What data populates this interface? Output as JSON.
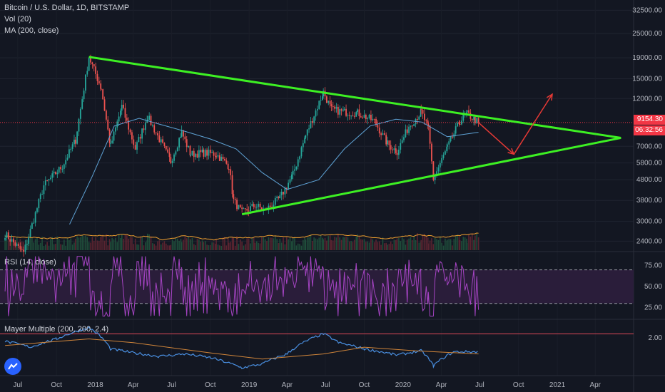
{
  "header": {
    "title": "Bitcoin / U.S. Dollar, 1D, BITSTAMP",
    "vol": "Vol (20)",
    "ma": "MA (200, close)"
  },
  "price_tags": {
    "last": "9154.30",
    "countdown": "06:32:56"
  },
  "colors": {
    "trendline": "#3df023",
    "projection": "#e53935",
    "ma": "#5fa3d6",
    "vol_ma": "#f0a030",
    "rsi": "#a644c4",
    "mayer": "#4a90e2",
    "mayer_ma": "#d0853a",
    "last_price": "#f23645",
    "bg": "#131722"
  },
  "chart_data": [
    {
      "type": "candlestick",
      "title": "Bitcoin / U.S. Dollar, 1D, BITSTAMP",
      "log_scale": true,
      "y_tick_labels": [
        "32500.00",
        "25000.00",
        "19000.00",
        "15000.00",
        "12000.00",
        "9154.30",
        "7000.00",
        "5800.00",
        "4800.00",
        "3800.00",
        "3000.00",
        "2400.00"
      ],
      "x_tick_labels": [
        "Jul",
        "Oct",
        "2018",
        "Apr",
        "Jul",
        "Oct",
        "2019",
        "Apr",
        "Jul",
        "Oct",
        "2020",
        "Apr",
        "Jul",
        "Oct",
        "2021",
        "Apr"
      ],
      "series": [
        {
          "name": "Bitcoin / U.S. Dollar",
          "x": [
            "2017-06-01",
            "2017-07-15",
            "2017-09-01",
            "2017-10-15",
            "2017-11-15",
            "2017-12-17",
            "2018-01-15",
            "2018-02-06",
            "2018-03-05",
            "2018-04-06",
            "2018-05-05",
            "2018-06-29",
            "2018-07-25",
            "2018-08-15",
            "2018-09-15",
            "2018-10-15",
            "2018-11-14",
            "2018-11-25",
            "2018-12-15",
            "2019-01-15",
            "2019-02-08",
            "2019-03-15",
            "2019-04-15",
            "2019-05-15",
            "2019-06-26",
            "2019-07-15",
            "2019-08-15",
            "2019-09-15",
            "2019-10-25",
            "2019-11-25",
            "2019-12-18",
            "2020-01-15",
            "2020-02-13",
            "2020-03-01",
            "2020-03-13",
            "2020-04-15",
            "2020-05-15",
            "2020-06-01",
            "2020-06-20",
            "2020-06-28"
          ],
          "y": [
            2600,
            2100,
            4500,
            5600,
            7500,
            19200,
            13500,
            7000,
            11000,
            6800,
            9800,
            5900,
            8200,
            6400,
            6500,
            6400,
            5600,
            3800,
            3300,
            3600,
            3400,
            3900,
            5100,
            7900,
            12900,
            10600,
            10300,
            10200,
            9300,
            7200,
            6600,
            8800,
            10300,
            8600,
            4850,
            6900,
            9300,
            10100,
            9400,
            9154
          ]
        },
        {
          "name": "MA (200, close)",
          "x": [
            "2017-11-01",
            "2017-12-25",
            "2018-02-15",
            "2018-04-15",
            "2018-06-01",
            "2018-08-01",
            "2018-10-01",
            "2018-12-01",
            "2019-02-01",
            "2019-04-01",
            "2019-06-15",
            "2019-08-15",
            "2019-10-15",
            "2019-12-15",
            "2020-02-15",
            "2020-04-15",
            "2020-06-28"
          ],
          "y": [
            2900,
            5000,
            8800,
            9600,
            9000,
            8300,
            7600,
            6800,
            5200,
            4300,
            4800,
            6800,
            8800,
            9500,
            9200,
            7800,
            8200
          ]
        },
        {
          "name": "Vol (20)"
        }
      ],
      "trendlines": [
        {
          "x": [
            "2017-12-17",
            "2021-06-01"
          ],
          "y": [
            19200,
            7700
          ]
        },
        {
          "x": [
            "2018-12-15",
            "2021-06-01"
          ],
          "y": [
            3250,
            7700
          ]
        }
      ],
      "projection": {
        "x": [
          "2020-06-28",
          "2020-09-20",
          "2020-12-20"
        ],
        "y": [
          9154,
          6400,
          12600
        ]
      },
      "xlim": [
        "2017-05-20",
        "2021-07-01"
      ]
    },
    {
      "type": "line",
      "title": "RSI (14, close)",
      "y_tick_labels": [
        "75.00",
        "50.00",
        "25.00"
      ],
      "reference_lines": [
        70,
        30
      ],
      "ylim": [
        12,
        90
      ]
    },
    {
      "type": "line",
      "title": "Mayer Multiple (200, 200, 2.4)",
      "y_tick_labels": [
        "2.00"
      ],
      "threshold": 2.4,
      "series": [
        {
          "name": "Mayer Multiple",
          "x": [
            "2017-06-01",
            "2017-08-01",
            "2017-10-01",
            "2017-12-17",
            "2018-02-06",
            "2018-04-01",
            "2018-06-01",
            "2018-08-01",
            "2018-10-01",
            "2018-12-15",
            "2019-02-01",
            "2019-04-01",
            "2019-06-26",
            "2019-08-01",
            "2019-10-01",
            "2019-12-18",
            "2020-02-13",
            "2020-03-13",
            "2020-05-01",
            "2020-06-28"
          ],
          "y": [
            1.7,
            1.3,
            1.9,
            3.2,
            1.2,
            1.0,
            0.85,
            0.95,
            0.8,
            0.5,
            0.6,
            0.95,
            2.4,
            1.6,
            1.2,
            0.9,
            1.1,
            0.55,
            1.05,
            1.05
          ]
        },
        {
          "name": "Mayer Multiple MA",
          "x": [
            "2017-06-01",
            "2017-12-17",
            "2018-04-01",
            "2018-10-01",
            "2019-02-01",
            "2019-06-26",
            "2019-10-01",
            "2020-02-01",
            "2020-06-28"
          ],
          "y": [
            1.4,
            1.9,
            1.6,
            1.0,
            0.75,
            0.95,
            1.3,
            1.1,
            0.95
          ]
        }
      ]
    }
  ]
}
